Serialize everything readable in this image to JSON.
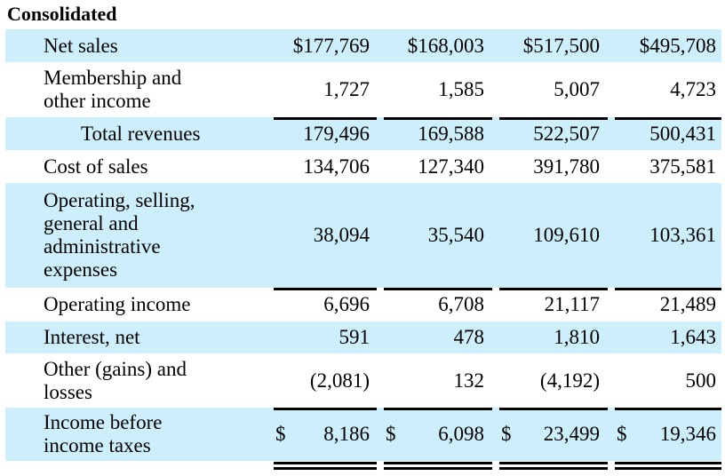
{
  "title": "Consolidated",
  "rows": [
    {
      "label": "Net sales",
      "values": [
        "$177,769",
        "$168,003",
        "$517,500",
        "$495,708"
      ]
    },
    {
      "label_lines": [
        "Membership and",
        "other income"
      ],
      "values": [
        "1,727",
        "1,585",
        "5,007",
        "4,723"
      ]
    },
    {
      "label": "Total revenues",
      "values": [
        "179,496",
        "169,588",
        "522,507",
        "500,431"
      ]
    },
    {
      "label": "Cost of sales",
      "values": [
        "134,706",
        "127,340",
        "391,780",
        "375,581"
      ]
    },
    {
      "label_lines": [
        "Operating, selling,",
        "general and",
        "administrative",
        "expenses"
      ],
      "values": [
        "38,094",
        "35,540",
        "109,610",
        "103,361"
      ]
    },
    {
      "label": "Operating income",
      "values": [
        "6,696",
        "6,708",
        "21,117",
        "21,489"
      ]
    },
    {
      "label": "Interest, net",
      "values": [
        "591",
        "478",
        "1,810",
        "1,643"
      ]
    },
    {
      "label_lines": [
        "Other (gains) and",
        "losses"
      ],
      "values": [
        "(2,081)",
        "132",
        "(4,192)",
        "500"
      ]
    },
    {
      "label_lines": [
        "Income before",
        "income taxes"
      ],
      "currency": "$",
      "values": [
        "8,186",
        "6,098",
        "23,499",
        "19,346"
      ]
    }
  ]
}
